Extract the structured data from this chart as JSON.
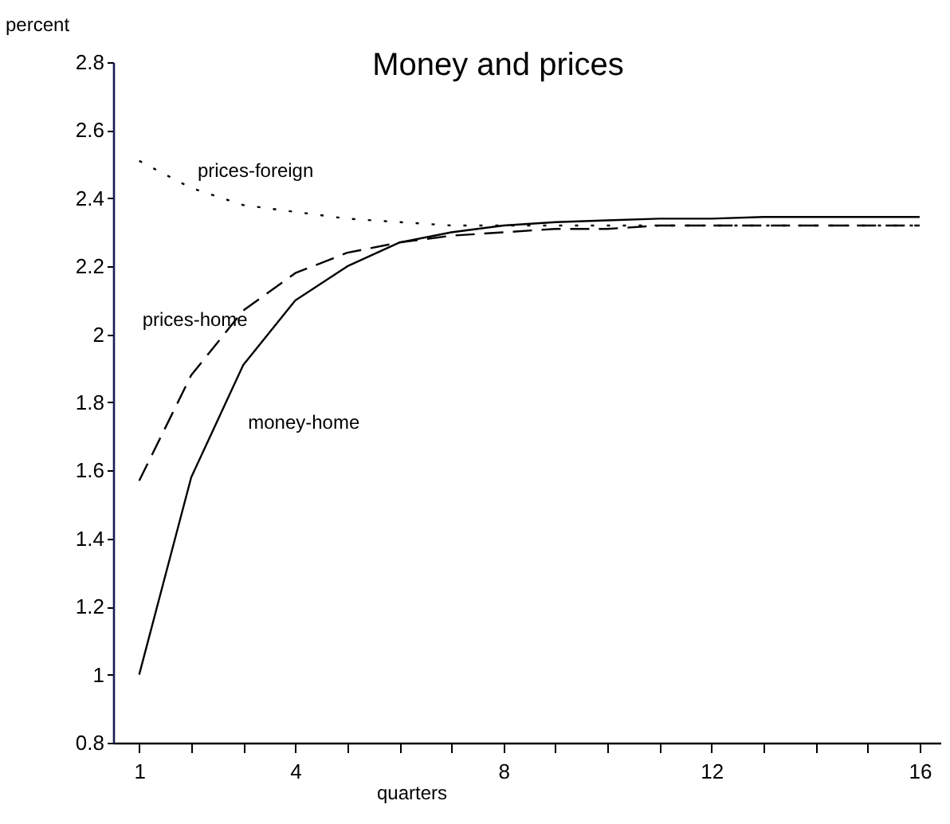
{
  "chart_data": {
    "type": "line",
    "title": "Money and prices",
    "xlabel": "quarters",
    "ylabel": "percent",
    "x": [
      1,
      2,
      3,
      4,
      5,
      6,
      7,
      8,
      9,
      10,
      11,
      12,
      13,
      14,
      15,
      16
    ],
    "series": [
      {
        "name": "prices-foreign",
        "color": "#000000",
        "line_style": "dotted",
        "values": [
          2.51,
          2.43,
          2.38,
          2.36,
          2.34,
          2.33,
          2.32,
          2.32,
          2.32,
          2.32,
          2.32,
          2.32,
          2.32,
          2.32,
          2.32,
          2.32
        ]
      },
      {
        "name": "prices-home",
        "color": "#000000",
        "line_style": "dashed",
        "values": [
          1.57,
          1.88,
          2.07,
          2.18,
          2.24,
          2.27,
          2.29,
          2.3,
          2.31,
          2.31,
          2.32,
          2.32,
          2.32,
          2.32,
          2.32,
          2.32
        ]
      },
      {
        "name": "money-home",
        "color": "#000000",
        "line_style": "solid",
        "values": [
          1.0,
          1.58,
          1.91,
          2.1,
          2.2,
          2.27,
          2.3,
          2.32,
          2.33,
          2.335,
          2.34,
          2.34,
          2.345,
          2.345,
          2.345,
          2.345
        ]
      }
    ],
    "xlim": [
      0.5,
      16.4
    ],
    "ylim": [
      0.8,
      2.8
    ],
    "xticks": [
      1,
      {
        "value": 2,
        "label": null
      },
      {
        "value": 3,
        "label": null
      },
      4,
      {
        "value": 5,
        "label": null
      },
      {
        "value": 6,
        "label": null
      },
      {
        "value": 7,
        "label": null
      },
      8,
      {
        "value": 9,
        "label": null
      },
      {
        "value": 10,
        "label": null
      },
      {
        "value": 11,
        "label": null
      },
      12,
      {
        "value": 13,
        "label": null
      },
      {
        "value": 14,
        "label": null
      },
      {
        "value": 15,
        "label": null
      },
      16
    ],
    "yticks": [
      0.8,
      1,
      1.2,
      1.4,
      1.6,
      1.8,
      2,
      2.2,
      2.4,
      2.6,
      2.8
    ],
    "grid": false,
    "legend": false,
    "marker": "none"
  }
}
